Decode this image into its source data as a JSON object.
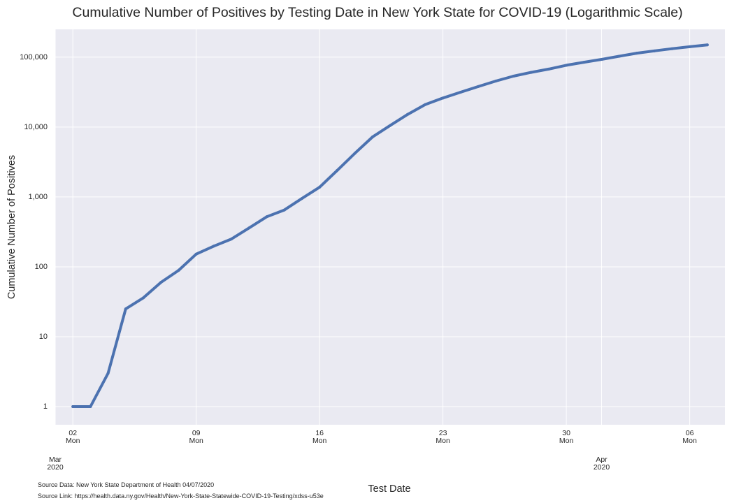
{
  "chart_data": {
    "type": "line",
    "title": "Cumulative Number of Positives by Testing Date in New York State for COVID-19 (Logarithmic Scale)",
    "xlabel": "Test Date",
    "ylabel": "Cumulative Number of Positives",
    "yscale": "log",
    "ylim": [
      0.55,
      250000
    ],
    "xlim": [
      "2020-03-01",
      "2020-04-08"
    ],
    "grid": true,
    "background": "#EAEAF2",
    "line_color": "#4C72B0",
    "yticks": [
      {
        "value": 1,
        "label": "1"
      },
      {
        "value": 10,
        "label": "10"
      },
      {
        "value": 100,
        "label": "100"
      },
      {
        "value": 1000,
        "label": "1,000"
      },
      {
        "value": 10000,
        "label": "10,000"
      },
      {
        "value": 100000,
        "label": "100,000"
      }
    ],
    "xticks_major": [
      {
        "date": "2020-03-02",
        "day": "02",
        "weekday": "Mon"
      },
      {
        "date": "2020-03-09",
        "day": "09",
        "weekday": "Mon"
      },
      {
        "date": "2020-03-16",
        "day": "16",
        "weekday": "Mon"
      },
      {
        "date": "2020-03-23",
        "day": "23",
        "weekday": "Mon"
      },
      {
        "date": "2020-03-30",
        "day": "30",
        "weekday": "Mon"
      },
      {
        "date": "2020-04-06",
        "day": "06",
        "weekday": "Mon"
      }
    ],
    "xticks_month": [
      {
        "date": "2020-03-01",
        "month": "Mar",
        "year": "2020"
      },
      {
        "date": "2020-04-01",
        "month": "Apr",
        "year": "2020"
      }
    ],
    "x": [
      "2020-03-02",
      "2020-03-03",
      "2020-03-04",
      "2020-03-05",
      "2020-03-06",
      "2020-03-07",
      "2020-03-08",
      "2020-03-09",
      "2020-03-10",
      "2020-03-11",
      "2020-03-12",
      "2020-03-13",
      "2020-03-14",
      "2020-03-15",
      "2020-03-16",
      "2020-03-17",
      "2020-03-18",
      "2020-03-19",
      "2020-03-20",
      "2020-03-21",
      "2020-03-22",
      "2020-03-23",
      "2020-03-24",
      "2020-03-25",
      "2020-03-26",
      "2020-03-27",
      "2020-03-28",
      "2020-03-29",
      "2020-03-30",
      "2020-03-31",
      "2020-04-01",
      "2020-04-02",
      "2020-04-03",
      "2020-04-04",
      "2020-04-05",
      "2020-04-06",
      "2020-04-07"
    ],
    "y": [
      1,
      1,
      3,
      25,
      36,
      60,
      89,
      152,
      198,
      250,
      360,
      520,
      650,
      950,
      1380,
      2400,
      4200,
      7200,
      10500,
      15200,
      21000,
      26000,
      31500,
      38000,
      45500,
      53500,
      60500,
      67500,
      76500,
      84500,
      93000,
      103000,
      114000,
      123000,
      132000,
      141000,
      150000
    ],
    "series": [
      {
        "values_ref": "y"
      }
    ]
  },
  "source": {
    "data_text": "Source Data: New York State Department of Health 04/07/2020",
    "link_text": "Source Link: https://health.data.ny.gov/Health/New-York-State-Statewide-COVID-19-Testing/xdss-u53e"
  }
}
